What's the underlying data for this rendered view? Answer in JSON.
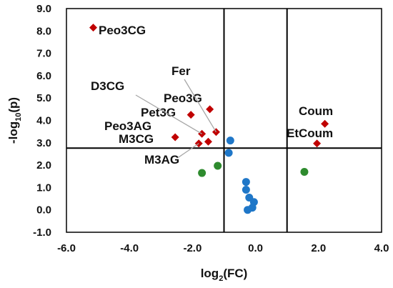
{
  "chart_data": {
    "type": "scatter",
    "xlabel": {
      "base": "log",
      "sub": "2",
      "tail": "(FC)"
    },
    "ylabel": {
      "base": "-log",
      "sub": "10",
      "tail": "(p)"
    },
    "xlim": [
      -6.0,
      4.0
    ],
    "ylim": [
      -1.0,
      9.0
    ],
    "x_ticks": [
      -6.0,
      -4.0,
      -2.0,
      0.0,
      2.0,
      4.0
    ],
    "x_tick_labels": [
      "-6.0",
      "-4.0",
      "-2.0",
      "0.0",
      "2.0",
      "4.0"
    ],
    "y_ticks": [
      -1.0,
      0.0,
      1.0,
      2.0,
      3.0,
      4.0,
      5.0,
      6.0,
      7.0,
      8.0,
      9.0
    ],
    "y_tick_labels": [
      "-1.0",
      "0.0",
      "1.0",
      "2.0",
      "3.0",
      "4.0",
      "5.0",
      "6.0",
      "7.0",
      "8.0",
      "9.0"
    ],
    "grid": false,
    "threshold_lines": {
      "vertical": [
        -1.0,
        1.0
      ],
      "horizontal": [
        2.76
      ]
    },
    "colors": {
      "significant": "#c00000",
      "increased_only": "#2e8b2e",
      "not_significant": "#1f77c8"
    },
    "series": [
      {
        "marker": "diamond",
        "color": "#c00000",
        "points": [
          {
            "label": "Peo3CG",
            "x": -5.15,
            "y": 8.15
          },
          {
            "label": "Peo3G",
            "x": -1.45,
            "y": 4.5
          },
          {
            "label": "Pet3G",
            "x": -2.05,
            "y": 4.25
          },
          {
            "label": "Fer",
            "x": -1.25,
            "y": 3.48
          },
          {
            "label": "D3CG",
            "x": -1.7,
            "y": 3.4
          },
          {
            "label": "Peo3AG",
            "x": -1.5,
            "y": 3.05
          },
          {
            "label": "M3CG",
            "x": -2.55,
            "y": 3.25
          },
          {
            "label": "M3AG",
            "x": -1.8,
            "y": 2.97
          },
          {
            "label": "Coum",
            "x": 2.2,
            "y": 3.85
          },
          {
            "label": "EtCoum",
            "x": 1.95,
            "y": 2.97
          }
        ]
      },
      {
        "marker": "circle",
        "color": "#2e8b2e",
        "points": [
          {
            "x": -1.7,
            "y": 1.65
          },
          {
            "x": -1.2,
            "y": 1.97
          },
          {
            "x": 1.55,
            "y": 1.7
          }
        ]
      },
      {
        "marker": "circle",
        "color": "#1f77c8",
        "points": [
          {
            "x": -0.8,
            "y": 3.1
          },
          {
            "x": -0.85,
            "y": 2.55
          },
          {
            "x": -0.3,
            "y": 1.25
          },
          {
            "x": -0.3,
            "y": 0.9
          },
          {
            "x": -0.2,
            "y": 0.55
          },
          {
            "x": -0.05,
            "y": 0.35
          },
          {
            "x": -0.1,
            "y": 0.1
          },
          {
            "x": -0.25,
            "y": 0.0
          }
        ]
      }
    ]
  }
}
